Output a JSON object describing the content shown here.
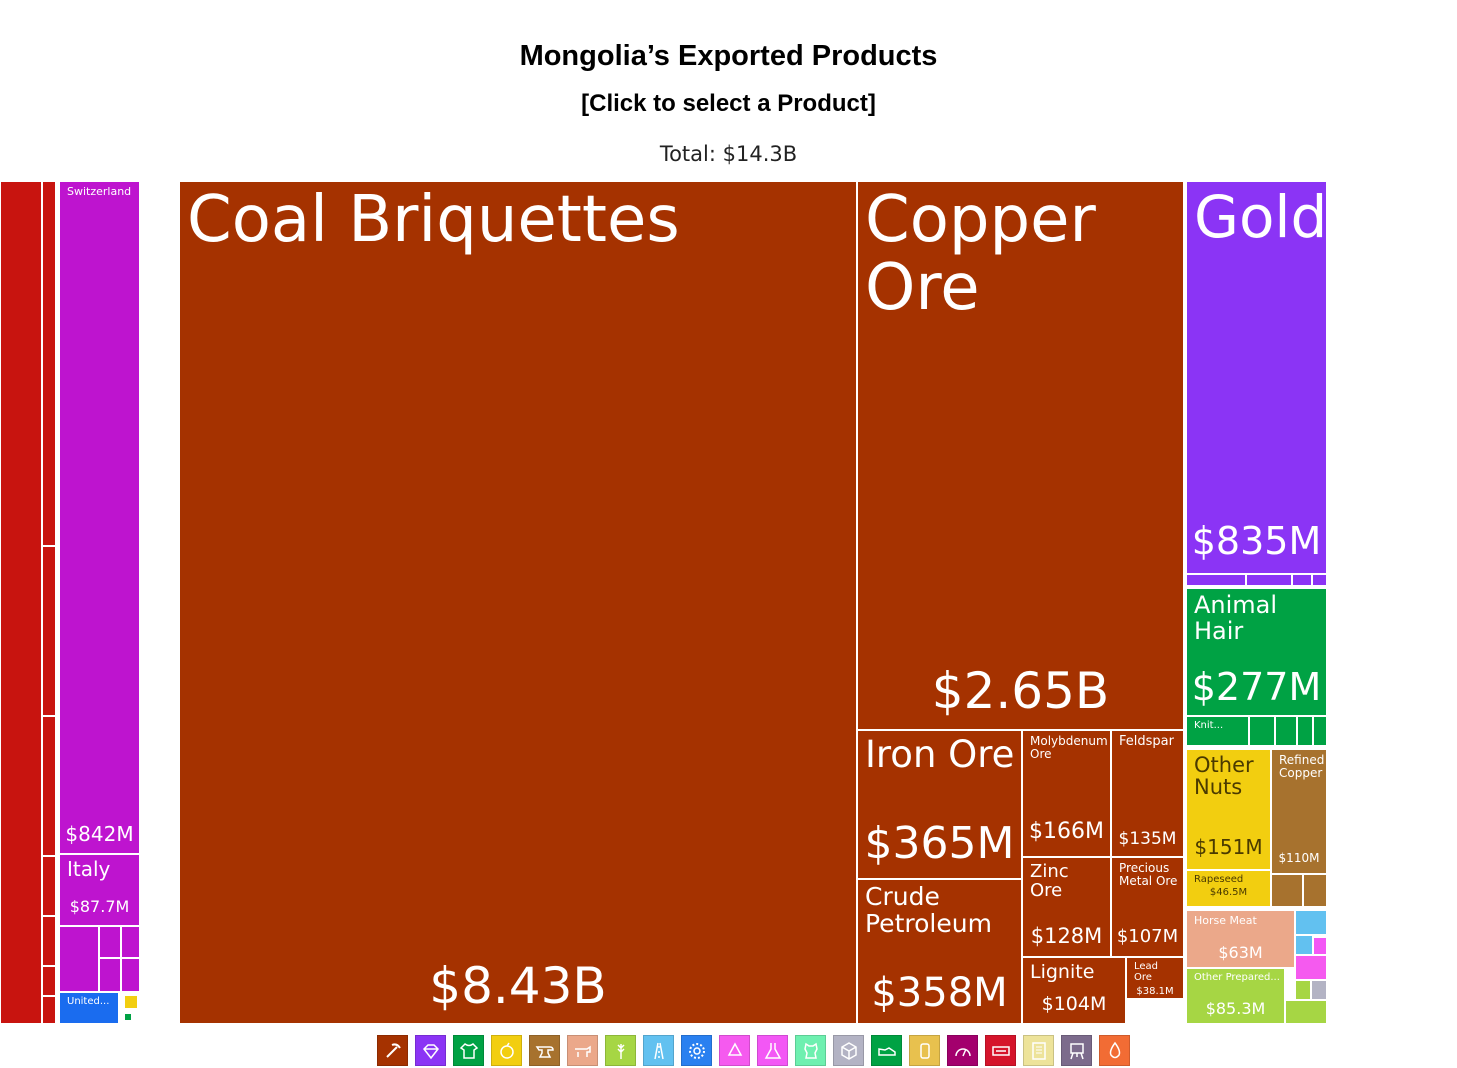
{
  "header": {
    "title": "Mongolia’s Exported Products",
    "subtitle": "[Click to select a Product]",
    "total": "Total: $14.3B"
  },
  "chart_data": {
    "type": "treemap",
    "title": "Mongolia’s Exported Products",
    "total": "$14.3B",
    "items": [
      {
        "name": "Coal Briquettes",
        "value_label": "$8.43B",
        "value": 8430,
        "category": "Mineral Products",
        "color": "#a53200"
      },
      {
        "name": "Copper Ore",
        "value_label": "$2.65B",
        "value": 2650,
        "category": "Mineral Products",
        "color": "#a53200"
      },
      {
        "name": "Iron Ore",
        "value_label": "$365M",
        "value": 365,
        "category": "Mineral Products",
        "color": "#a53200"
      },
      {
        "name": "Crude Petroleum",
        "value_label": "$358M",
        "value": 358,
        "category": "Mineral Products",
        "color": "#a53200"
      },
      {
        "name": "Molybdenum Ore",
        "value_label": "$166M",
        "value": 166,
        "category": "Mineral Products",
        "color": "#a53200"
      },
      {
        "name": "Feldspar",
        "value_label": "$135M",
        "value": 135,
        "category": "Mineral Products",
        "color": "#a53200"
      },
      {
        "name": "Zinc Ore",
        "value_label": "$128M",
        "value": 128,
        "category": "Mineral Products",
        "color": "#a53200"
      },
      {
        "name": "Precious Metal Ore",
        "value_label": "$107M",
        "value": 107,
        "category": "Mineral Products",
        "color": "#a53200"
      },
      {
        "name": "Lignite",
        "value_label": "$104M",
        "value": 104,
        "category": "Mineral Products",
        "color": "#a53200"
      },
      {
        "name": "Lead Ore",
        "value_label": "$38.1M",
        "value": 38.1,
        "category": "Mineral Products",
        "color": "#a53200"
      },
      {
        "name": "Gold",
        "value_label": "$835M",
        "value": 835,
        "category": "Precious Metals",
        "color": "#8b34f5"
      },
      {
        "name": "Animal Hair",
        "value_label": "$277M",
        "value": 277,
        "category": "Textiles",
        "color": "#00a244"
      },
      {
        "name": "Knit...",
        "value_label": "",
        "value": null,
        "category": "Textiles",
        "color": "#00a244"
      },
      {
        "name": "Other Nuts",
        "value_label": "$151M",
        "value": 151,
        "category": "Vegetable Products",
        "color": "#f2ce10"
      },
      {
        "name": "Rapeseed",
        "value_label": "$46.5M",
        "value": 46.5,
        "category": "Vegetable Products",
        "color": "#f2ce10"
      },
      {
        "name": "Refined Copper",
        "value_label": "$110M",
        "value": 110,
        "category": "Metals",
        "color": "#a7722e"
      },
      {
        "name": "Horse Meat",
        "value_label": "$63M",
        "value": 63,
        "category": "Animal Products",
        "color": "#eba88a"
      },
      {
        "name": "Other Prepared...",
        "value_label": "$85.3M",
        "value": 85.3,
        "category": "Foodstuffs",
        "color": "#a6d644"
      },
      {
        "name": "Switzerland",
        "value_label": "$842M",
        "value": 842,
        "category": "Re-imports",
        "color": "#be14cf"
      },
      {
        "name": "Italy",
        "value_label": "$87.7M",
        "value": 87.7,
        "category": "Re-imports",
        "color": "#be14cf"
      },
      {
        "name": "United...",
        "value_label": "",
        "value": null,
        "category": "Re-imports",
        "color": "#1a6cef"
      }
    ]
  },
  "legend": [
    {
      "name": "mineral-products-icon",
      "color": "#a53200",
      "glyph": "pick"
    },
    {
      "name": "precious-metals-icon",
      "color": "#8b34f5",
      "glyph": "gem"
    },
    {
      "name": "textiles-icon",
      "color": "#00a244",
      "glyph": "shirt"
    },
    {
      "name": "vegetable-products-icon",
      "color": "#f2ce10",
      "glyph": "fruit"
    },
    {
      "name": "metals-icon",
      "color": "#a7722e",
      "glyph": "anvil"
    },
    {
      "name": "animal-products-icon",
      "color": "#eba88a",
      "glyph": "cow"
    },
    {
      "name": "foodstuffs-icon",
      "color": "#a6d644",
      "glyph": "wheat"
    },
    {
      "name": "transportation-icon",
      "color": "#62c1f0",
      "glyph": "road"
    },
    {
      "name": "machines-icon",
      "color": "#2a80f0",
      "glyph": "gear"
    },
    {
      "name": "plastics-and-rubbers-icon",
      "color": "#f55aef",
      "glyph": "recycle"
    },
    {
      "name": "chemical-products-icon",
      "color": "#f357f5",
      "glyph": "flask"
    },
    {
      "name": "animal-hides-icon",
      "color": "#6ef0b0",
      "glyph": "hide"
    },
    {
      "name": "stone-and-glass-icon",
      "color": "#b3b3c4",
      "glyph": "cube"
    },
    {
      "name": "footwear-and-headwear-icon",
      "color": "#00a244",
      "glyph": "shoe"
    },
    {
      "name": "wood-products-icon",
      "color": "#e8c14e",
      "glyph": "log"
    },
    {
      "name": "instruments-icon",
      "color": "#a3006d",
      "glyph": "gauge"
    },
    {
      "name": "miscellaneous-icon",
      "color": "#d5142b",
      "glyph": "ticket"
    },
    {
      "name": "paper-goods-icon",
      "color": "#ede39a",
      "glyph": "paper"
    },
    {
      "name": "arts-and-antiques-icon",
      "color": "#7c6b8c",
      "glyph": "easel"
    },
    {
      "name": "animal-and-vegetable-bi-products-icon",
      "color": "#f26c34",
      "glyph": "drop"
    }
  ]
}
